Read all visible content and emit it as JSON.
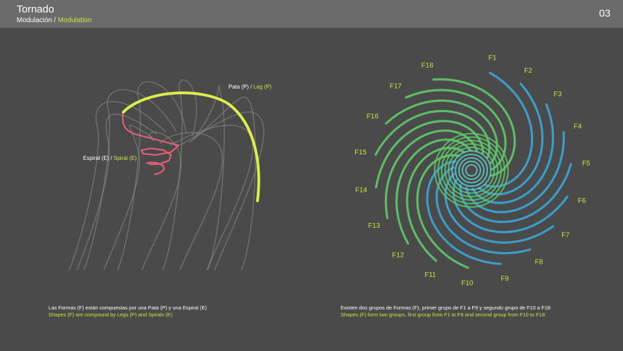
{
  "header": {
    "title": "Tornado",
    "subtitle_es": "Modulación",
    "subtitle_sep": " / ",
    "subtitle_en": "Modulation",
    "page_number": "03"
  },
  "left_diagram": {
    "leg_label_es": "Pata (P)",
    "leg_label_en": "Leg (P)",
    "spiral_label_es": "Espiral (E)",
    "spiral_label_en": "Spiral (E)",
    "label_sep": " / ",
    "colors": {
      "ghost": "#8a8a8a",
      "leg": "#dcee4a",
      "spiral": "#f0607a"
    }
  },
  "right_diagram": {
    "labels": [
      "F1",
      "F2",
      "F3",
      "F4",
      "F5",
      "F6",
      "F7",
      "F8",
      "F9",
      "F10",
      "F11",
      "F12",
      "F13",
      "F14",
      "F15",
      "F16",
      "F17",
      "F18"
    ],
    "colors": {
      "group1": "#3aa6d8",
      "group2": "#5ec96a",
      "core": "#5ad0c8"
    }
  },
  "captions": {
    "left_es": "Las Formas (F) están compuestas por una Pata (P) y una Espiral (E)",
    "left_en": "Shapes (F) are compound by Legs (P) and Spirals (E)",
    "right_es": "Existen dos grupos de Formas (F), primer grupo de F1 a F9 y segundo grupo de F10 a F18",
    "right_en": "Shapes (F) form two groups, first group from F1 to F9 and second group from F10 to F18"
  }
}
